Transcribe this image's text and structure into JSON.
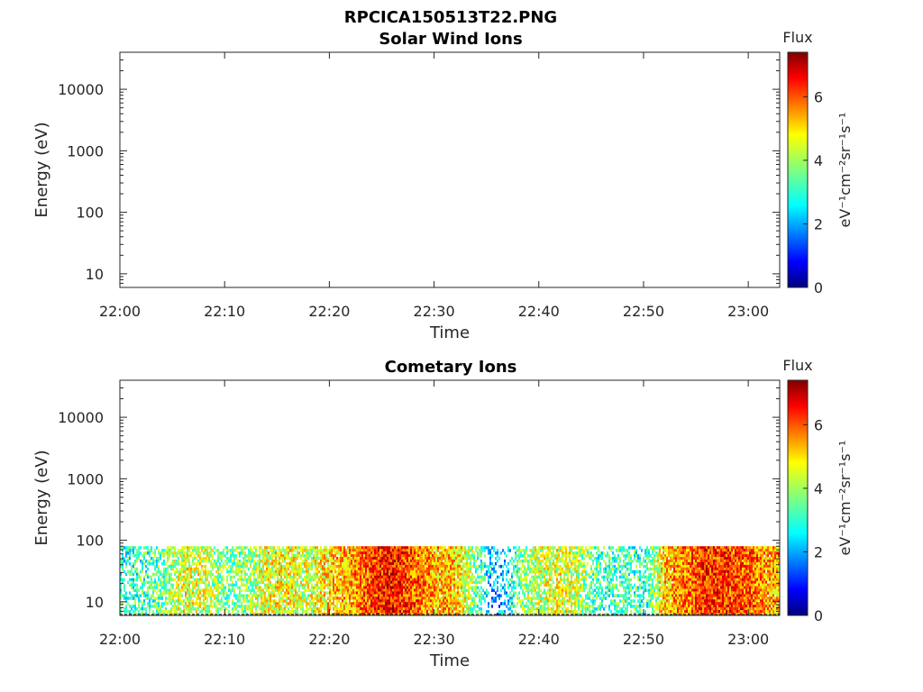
{
  "figure": {
    "main_title": "RPCICA150513T22.PNG"
  },
  "colors": {
    "axis": "#262626",
    "colormap": [
      "#00007f",
      "#0000ff",
      "#007fff",
      "#00ffff",
      "#7fff7f",
      "#ffff00",
      "#ff7f00",
      "#ff0000",
      "#7f0000"
    ]
  },
  "chart_data": [
    {
      "type": "heatmap",
      "title": "Solar Wind Ions",
      "xlabel": "Time",
      "ylabel": "Energy (eV)",
      "x_ticks": [
        "22:00",
        "22:10",
        "22:20",
        "22:30",
        "22:40",
        "22:50",
        "23:00"
      ],
      "xlim": [
        "22:00",
        "23:03"
      ],
      "y_scale": "log",
      "y_ticks": [
        "10",
        "100",
        "1000",
        "10000"
      ],
      "ylim": [
        6,
        40000
      ],
      "colorbar": {
        "title": "Flux",
        "label": "eV⁻¹cm⁻²sr⁻¹s⁻¹",
        "ticks": [
          "0",
          "2",
          "4",
          "6"
        ],
        "range": [
          0,
          7.4
        ]
      },
      "data": "no data"
    },
    {
      "type": "heatmap",
      "title": "Cometary Ions",
      "xlabel": "Time",
      "ylabel": "Energy (eV)",
      "x_ticks": [
        "22:00",
        "22:10",
        "22:20",
        "22:30",
        "22:40",
        "22:50",
        "23:00"
      ],
      "xlim": [
        "22:00",
        "23:03"
      ],
      "y_scale": "log",
      "y_ticks": [
        "10",
        "100",
        "1000",
        "10000"
      ],
      "ylim": [
        6,
        40000
      ],
      "colorbar": {
        "title": "Flux",
        "label": "eV⁻¹cm⁻²sr⁻¹s⁻¹",
        "ticks": [
          "0",
          "2",
          "4",
          "6"
        ],
        "range": [
          0,
          7.4
        ]
      },
      "energy_range_with_signal": [
        6,
        80
      ],
      "flux_vs_time": {
        "time": [
          "22:00",
          "22:02",
          "22:04",
          "22:06",
          "22:08",
          "22:10",
          "22:12",
          "22:14",
          "22:16",
          "22:18",
          "22:20",
          "22:22",
          "22:24",
          "22:26",
          "22:28",
          "22:30",
          "22:32",
          "22:34",
          "22:36",
          "22:38",
          "22:40",
          "22:42",
          "22:44",
          "22:46",
          "22:48",
          "22:50",
          "22:52",
          "22:54",
          "22:56",
          "22:58",
          "23:00",
          "23:02"
        ],
        "mean_flux": [
          3.0,
          3.2,
          3.5,
          4.5,
          4.2,
          3.6,
          3.8,
          4.5,
          4.6,
          4.2,
          5.0,
          5.2,
          6.0,
          6.4,
          5.8,
          5.2,
          5.0,
          3.6,
          1.8,
          3.6,
          4.2,
          4.5,
          4.0,
          3.2,
          3.4,
          3.0,
          5.0,
          5.6,
          6.2,
          6.0,
          5.8,
          5.2
        ]
      }
    }
  ]
}
